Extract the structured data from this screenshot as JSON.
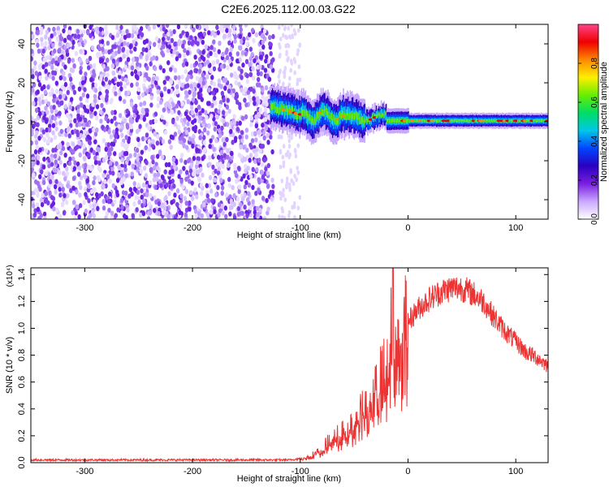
{
  "title": "C2E6.2025.112.00.03.G22",
  "chart_data": [
    {
      "type": "heatmap",
      "title": "C2E6.2025.112.00.03.G22",
      "xlabel": "Height of straight line (km)",
      "ylabel": "Frequency (Hz)",
      "xlim": [
        -350,
        130
      ],
      "ylim": [
        -50,
        50
      ],
      "xticks": [
        -300,
        -200,
        -100,
        0,
        100
      ],
      "yticks": [
        -40,
        -20,
        0,
        20,
        40
      ],
      "colorbar": {
        "label": "Normalized spectral amplitude",
        "range": [
          0.0,
          1.0
        ],
        "ticks": [
          "0.0",
          "0.2",
          "0.4",
          "0.6",
          "0.8"
        ],
        "colormap": [
          "#ffffff",
          "#c9a8ff",
          "#7a1fe0",
          "#2a00c0",
          "#0044ff",
          "#00c8e8",
          "#00dd66",
          "#66ee00",
          "#ffee00",
          "#ff8800",
          "#ee0000",
          "#ff4488"
        ]
      },
      "description_regions": [
        {
          "x_range": [
            -350,
            -125
          ],
          "freq_range": [
            -50,
            50
          ],
          "content": "noise"
        },
        {
          "x_range": [
            -125,
            130
          ],
          "freq_center": 0,
          "content": "narrow signal band near 0 Hz"
        }
      ]
    },
    {
      "type": "line",
      "xlabel": "Height of straight line (km)",
      "ylabel": "SNR (10 * v/v)",
      "y_multiplier": "(x10⁴)",
      "xlim": [
        -350,
        130
      ],
      "ylim": [
        0,
        1.45
      ],
      "xticks": [
        -300,
        -200,
        -100,
        0,
        100
      ],
      "yticks": [
        "0.0",
        "0.2",
        "0.4",
        "0.6",
        "0.8",
        "1.0",
        "1.2",
        "1.4"
      ],
      "color": "#ee3333",
      "envelope": {
        "x": [
          -350,
          -300,
          -250,
          -200,
          -150,
          -110,
          -100,
          -90,
          -80,
          -70,
          -60,
          -50,
          -40,
          -30,
          -20,
          -15,
          -10,
          -5,
          0,
          10,
          20,
          30,
          40,
          50,
          60,
          70,
          80,
          90,
          100,
          110,
          120,
          130
        ],
        "y": [
          0.02,
          0.02,
          0.02,
          0.02,
          0.02,
          0.02,
          0.03,
          0.05,
          0.1,
          0.18,
          0.22,
          0.3,
          0.4,
          0.55,
          0.7,
          1.0,
          0.8,
          0.95,
          1.05,
          1.15,
          1.22,
          1.27,
          1.3,
          1.3,
          1.26,
          1.2,
          1.08,
          0.98,
          0.9,
          0.82,
          0.78,
          0.72
        ]
      }
    }
  ]
}
